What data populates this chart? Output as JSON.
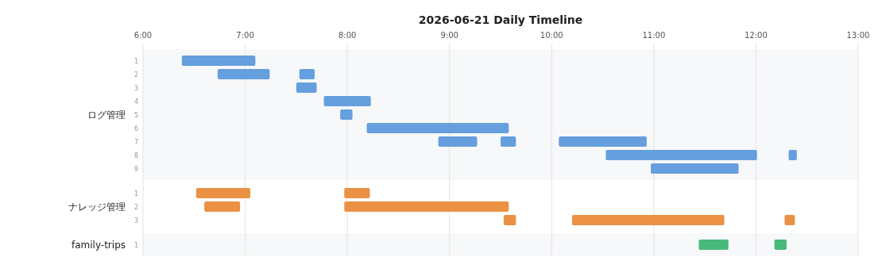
{
  "chart_data": [
    {
      "type": "bar",
      "orientation": "horizontal",
      "title": "2026-06-21 Daily Timeline",
      "ylabel": "ログ管理",
      "categories": [
        "1",
        "2",
        "3",
        "4",
        "5",
        "6",
        "7",
        "8",
        "9"
      ],
      "xlim": [
        6,
        13
      ],
      "xticks": [
        {
          "value": 6,
          "label": "6:00"
        },
        {
          "value": 7,
          "label": "7:00"
        },
        {
          "value": 8,
          "label": "8:00"
        },
        {
          "value": 9,
          "label": "9:00"
        },
        {
          "value": 10,
          "label": "10:00"
        },
        {
          "value": 11,
          "label": "11:00"
        },
        {
          "value": 12,
          "label": "12:00"
        },
        {
          "value": 13,
          "label": "13:00"
        }
      ],
      "grid": "x",
      "series": [
        {
          "color": "#659fdd",
          "base": [
            6.38,
            6.73,
            7.5,
            7.77,
            7.93,
            8.19,
            8.89,
            10.53,
            10.97
          ],
          "values": [
            0.72,
            0.51,
            0.2,
            0.46,
            0.12,
            1.39,
            0.38,
            1.48,
            0.86
          ]
        },
        {
          "color": "#659fdd",
          "base": [
            null,
            7.53,
            null,
            null,
            null,
            null,
            9.5,
            12.32,
            null
          ],
          "values": [
            null,
            0.15,
            null,
            null,
            null,
            null,
            0.15,
            0.08,
            null
          ]
        },
        {
          "color": "#659fdd",
          "base": [
            null,
            null,
            null,
            null,
            null,
            null,
            10.07,
            null,
            null
          ],
          "values": [
            null,
            null,
            null,
            null,
            null,
            null,
            0.86,
            null,
            null
          ]
        }
      ]
    },
    {
      "type": "bar",
      "orientation": "horizontal",
      "ylabel": "ナレッジ管理",
      "categories": [
        "1",
        "2",
        "3"
      ],
      "xlim": [
        6,
        13
      ],
      "xticks": [
        {
          "value": 6,
          "label": null
        },
        {
          "value": 7,
          "label": null
        },
        {
          "value": 8,
          "label": null
        },
        {
          "value": 9,
          "label": null
        },
        {
          "value": 10,
          "label": null
        },
        {
          "value": 11,
          "label": null
        },
        {
          "value": 12,
          "label": null
        },
        {
          "value": 13,
          "label": null
        }
      ],
      "grid": "x",
      "tick_labels": "y",
      "series": [
        {
          "color": "#ea9144",
          "base": [
            6.52,
            6.6,
            9.53
          ],
          "values": [
            0.53,
            0.35,
            0.12
          ]
        },
        {
          "color": "#ea9144",
          "base": [
            7.97,
            7.97,
            10.2
          ],
          "values": [
            0.25,
            1.61,
            1.49
          ]
        },
        {
          "color": "#ea9144",
          "base": [
            null,
            null,
            12.28
          ],
          "values": [
            null,
            null,
            0.1
          ]
        }
      ]
    },
    {
      "type": "bar",
      "orientation": "horizontal",
      "ylabel": "family-trips",
      "categories": [
        "1"
      ],
      "xlim": [
        6,
        13
      ],
      "xticks": [
        {
          "value": 6,
          "label": null
        },
        {
          "value": 7,
          "label": null
        },
        {
          "value": 8,
          "label": null
        },
        {
          "value": 9,
          "label": null
        },
        {
          "value": 10,
          "label": null
        },
        {
          "value": 11,
          "label": null
        },
        {
          "value": 12,
          "label": null
        },
        {
          "value": 13,
          "label": null
        }
      ],
      "grid": "x",
      "tick_labels": "y",
      "series": [
        {
          "color": "#48b97a",
          "base": [
            11.44
          ],
          "values": [
            0.29
          ]
        },
        {
          "color": "#48b97a",
          "base": [
            12.18
          ],
          "values": [
            0.12
          ]
        }
      ]
    }
  ]
}
